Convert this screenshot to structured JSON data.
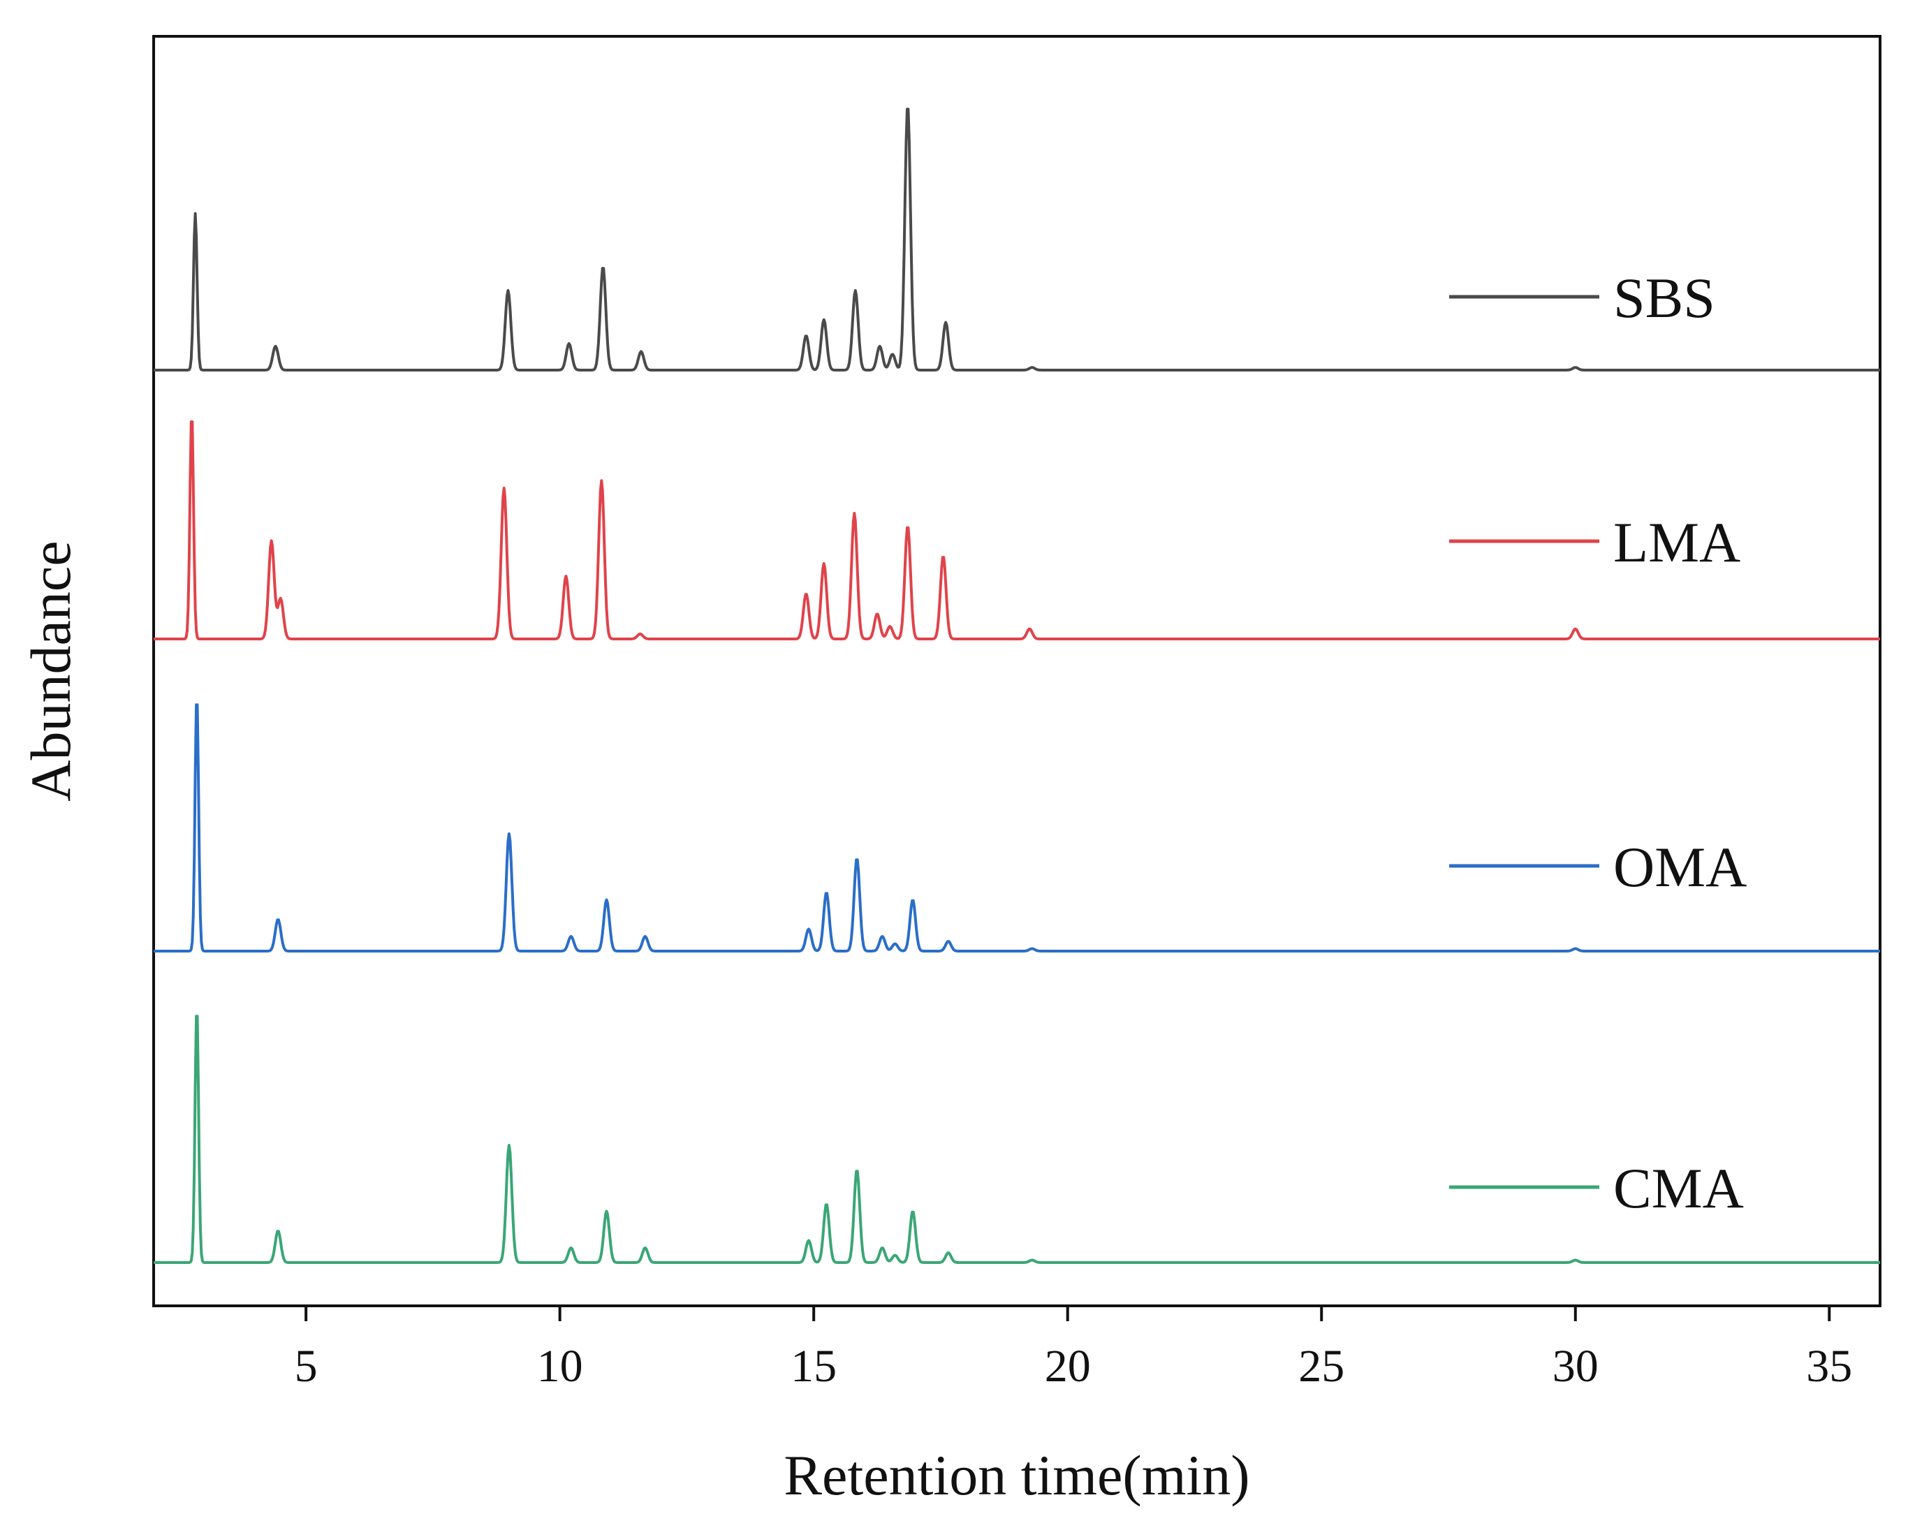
{
  "chart_data": {
    "type": "line",
    "title": "",
    "xlabel": "Retention time(min)",
    "ylabel": "Abundance",
    "xlim": [
      2,
      36
    ],
    "xticks": [
      5,
      10,
      15,
      20,
      25,
      30,
      35
    ],
    "y_ticks_shown": false,
    "grid": false,
    "legend_placement": "right, beside each trace",
    "stacked_offset_traces": true,
    "series": [
      {
        "name": "SBS",
        "color": "#4a4a4a",
        "peaks": [
          {
            "x": 2.82,
            "y": 0.59
          },
          {
            "x": 4.4,
            "y": 0.09
          },
          {
            "x": 8.98,
            "y": 0.3
          },
          {
            "x": 10.18,
            "y": 0.1
          },
          {
            "x": 10.85,
            "y": 0.39
          },
          {
            "x": 11.6,
            "y": 0.07
          },
          {
            "x": 14.85,
            "y": 0.13
          },
          {
            "x": 15.2,
            "y": 0.19
          },
          {
            "x": 15.82,
            "y": 0.3
          },
          {
            "x": 16.3,
            "y": 0.09
          },
          {
            "x": 16.55,
            "y": 0.06
          },
          {
            "x": 16.85,
            "y": 1.0
          },
          {
            "x": 17.6,
            "y": 0.18
          },
          {
            "x": 19.3,
            "y": 0.01
          },
          {
            "x": 30.0,
            "y": 0.01
          }
        ]
      },
      {
        "name": "LMA",
        "color": "#e0434a",
        "peaks": [
          {
            "x": 2.75,
            "y": 0.9
          },
          {
            "x": 4.32,
            "y": 0.39
          },
          {
            "x": 4.5,
            "y": 0.16
          },
          {
            "x": 8.9,
            "y": 0.6
          },
          {
            "x": 10.12,
            "y": 0.25
          },
          {
            "x": 10.82,
            "y": 0.63
          },
          {
            "x": 11.58,
            "y": 0.02
          },
          {
            "x": 14.85,
            "y": 0.18
          },
          {
            "x": 15.2,
            "y": 0.3
          },
          {
            "x": 15.8,
            "y": 0.5
          },
          {
            "x": 16.25,
            "y": 0.1
          },
          {
            "x": 16.5,
            "y": 0.05
          },
          {
            "x": 16.85,
            "y": 0.45
          },
          {
            "x": 17.55,
            "y": 0.33
          },
          {
            "x": 19.25,
            "y": 0.04
          },
          {
            "x": 30.0,
            "y": 0.04
          }
        ]
      },
      {
        "name": "OMA",
        "color": "#2a6ec8",
        "peaks": [
          {
            "x": 2.85,
            "y": 1.05
          },
          {
            "x": 4.45,
            "y": 0.13
          },
          {
            "x": 9.0,
            "y": 0.48
          },
          {
            "x": 10.22,
            "y": 0.06
          },
          {
            "x": 10.92,
            "y": 0.21
          },
          {
            "x": 11.68,
            "y": 0.06
          },
          {
            "x": 14.9,
            "y": 0.09
          },
          {
            "x": 15.25,
            "y": 0.24
          },
          {
            "x": 15.85,
            "y": 0.38
          },
          {
            "x": 16.35,
            "y": 0.06
          },
          {
            "x": 16.6,
            "y": 0.03
          },
          {
            "x": 16.95,
            "y": 0.21
          },
          {
            "x": 17.65,
            "y": 0.04
          },
          {
            "x": 19.3,
            "y": 0.01
          },
          {
            "x": 30.0,
            "y": 0.01
          }
        ]
      },
      {
        "name": "CMA",
        "color": "#3aa676",
        "peaks": [
          {
            "x": 2.85,
            "y": 1.05
          },
          {
            "x": 4.45,
            "y": 0.13
          },
          {
            "x": 9.0,
            "y": 0.48
          },
          {
            "x": 10.22,
            "y": 0.06
          },
          {
            "x": 10.92,
            "y": 0.21
          },
          {
            "x": 11.68,
            "y": 0.06
          },
          {
            "x": 14.9,
            "y": 0.09
          },
          {
            "x": 15.25,
            "y": 0.24
          },
          {
            "x": 15.85,
            "y": 0.38
          },
          {
            "x": 16.35,
            "y": 0.06
          },
          {
            "x": 16.6,
            "y": 0.03
          },
          {
            "x": 16.95,
            "y": 0.21
          },
          {
            "x": 17.65,
            "y": 0.04
          },
          {
            "x": 19.3,
            "y": 0.01
          },
          {
            "x": 30.0,
            "y": 0.01
          }
        ]
      }
    ]
  }
}
